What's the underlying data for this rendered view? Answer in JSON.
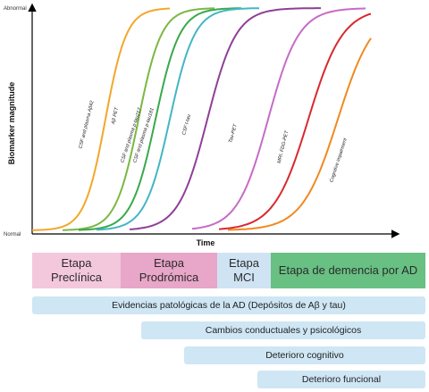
{
  "chart_data": {
    "type": "line",
    "ylabel": "Biomarker magnitude",
    "xlabel": "Time",
    "yticks": [
      "Abnormal",
      "Normal"
    ],
    "series": [
      {
        "name": "CSF and plasma Aβ42",
        "color": "#f2a72c"
      },
      {
        "name": "Aβ PET",
        "color": "#7ab843"
      },
      {
        "name": "CSF and plasma p-tau217",
        "color": "#39a94b"
      },
      {
        "name": "CSF and plasma p-tau181",
        "color": "#43b6c4"
      },
      {
        "name": "CSF t-tau",
        "color": "#8f3f96"
      },
      {
        "name": "Tau-PET",
        "color": "#c76bc6"
      },
      {
        "name": "MRI, FDG-PET",
        "color": "#d8292e"
      },
      {
        "name": "Cognitive impairment",
        "color": "#f08a1f"
      }
    ]
  },
  "stages": [
    {
      "line1": "Etapa",
      "line2": "Preclínica",
      "color": "#f4c8dc"
    },
    {
      "line1": "Etapa",
      "line2": "Prodrómica",
      "color": "#e8a6c8"
    },
    {
      "line1": "Etapa",
      "line2": "MCI",
      "color": "#cfe3f3"
    },
    {
      "line1": "Etapa de demencia por AD",
      "line2": "",
      "color": "#68c083"
    }
  ],
  "bars": [
    {
      "label": "Evidencias patológicas de la AD (Depósitos de Aβ y tau)"
    },
    {
      "label": "Cambios conductuales y psicológicos"
    },
    {
      "label": "Deterioro cognitivo"
    },
    {
      "label": "Deterioro funcional"
    }
  ]
}
